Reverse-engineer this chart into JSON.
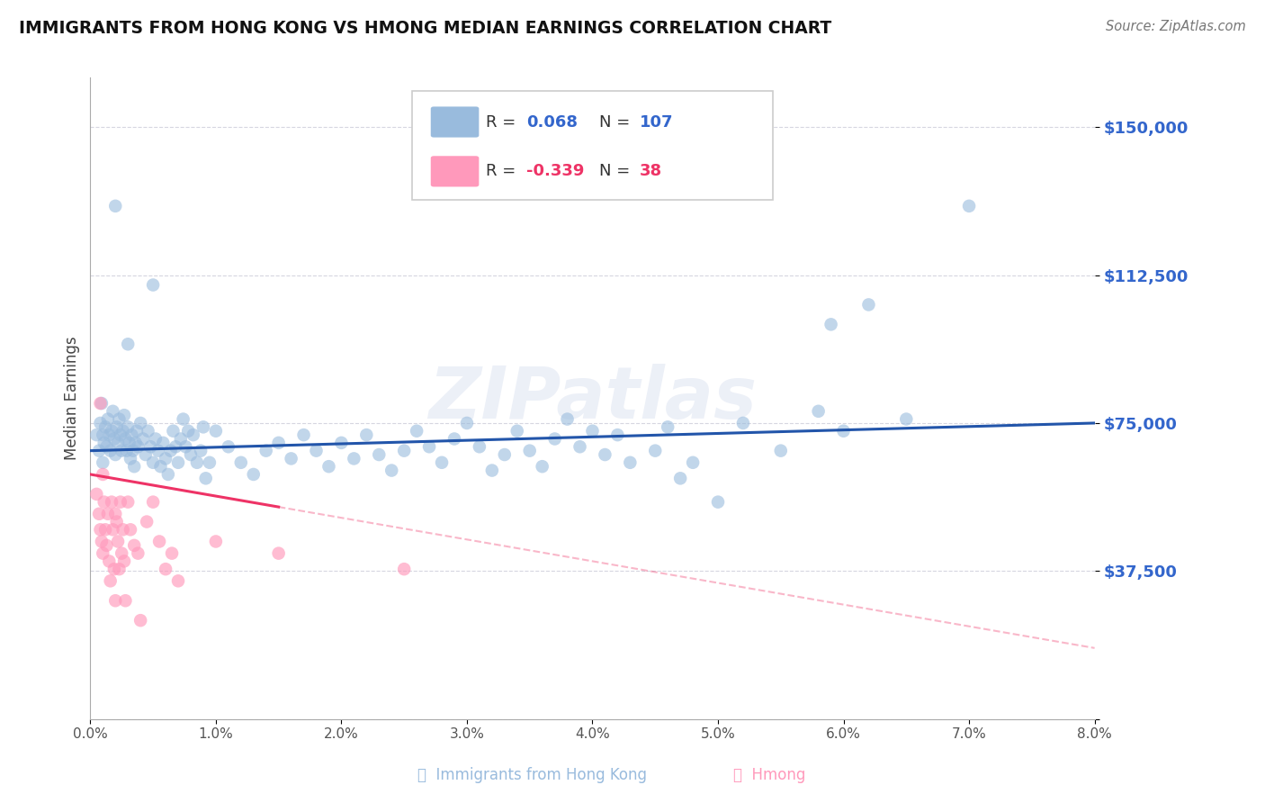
{
  "title": "IMMIGRANTS FROM HONG KONG VS HMONG MEDIAN EARNINGS CORRELATION CHART",
  "source": "Source: ZipAtlas.com",
  "ylabel": "Median Earnings",
  "xmin": 0.0,
  "xmax": 8.0,
  "ymin": 0,
  "ymax": 162500,
  "yticks": [
    0,
    37500,
    75000,
    112500,
    150000
  ],
  "ytick_labels": [
    "",
    "$37,500",
    "$75,000",
    "$112,500",
    "$150,000"
  ],
  "blue_color": "#99BBDD",
  "pink_color": "#FF99BB",
  "trend_blue": "#2255AA",
  "trend_pink": "#EE3366",
  "watermark": "ZIPatlas",
  "blue_intercept": 68000,
  "blue_slope": 875,
  "pink_intercept": 62000,
  "pink_slope": -5500,
  "pink_solid_end": 1.5,
  "blue_points": [
    [
      0.05,
      72000
    ],
    [
      0.07,
      68000
    ],
    [
      0.08,
      75000
    ],
    [
      0.09,
      80000
    ],
    [
      0.1,
      65000
    ],
    [
      0.1,
      72000
    ],
    [
      0.11,
      70000
    ],
    [
      0.12,
      74000
    ],
    [
      0.13,
      69000
    ],
    [
      0.14,
      76000
    ],
    [
      0.15,
      72000
    ],
    [
      0.16,
      68000
    ],
    [
      0.17,
      73000
    ],
    [
      0.18,
      78000
    ],
    [
      0.19,
      71000
    ],
    [
      0.2,
      67000
    ],
    [
      0.21,
      74000
    ],
    [
      0.22,
      70000
    ],
    [
      0.23,
      76000
    ],
    [
      0.24,
      72000
    ],
    [
      0.25,
      68000
    ],
    [
      0.26,
      73000
    ],
    [
      0.27,
      77000
    ],
    [
      0.28,
      71000
    ],
    [
      0.29,
      68000
    ],
    [
      0.3,
      95000
    ],
    [
      0.3,
      74000
    ],
    [
      0.31,
      70000
    ],
    [
      0.32,
      66000
    ],
    [
      0.33,
      72000
    ],
    [
      0.34,
      68000
    ],
    [
      0.35,
      64000
    ],
    [
      0.36,
      70000
    ],
    [
      0.37,
      73000
    ],
    [
      0.38,
      69000
    ],
    [
      0.4,
      75000
    ],
    [
      0.42,
      71000
    ],
    [
      0.44,
      67000
    ],
    [
      0.46,
      73000
    ],
    [
      0.48,
      69000
    ],
    [
      0.5,
      65000
    ],
    [
      0.52,
      71000
    ],
    [
      0.54,
      68000
    ],
    [
      0.56,
      64000
    ],
    [
      0.58,
      70000
    ],
    [
      0.6,
      66000
    ],
    [
      0.62,
      62000
    ],
    [
      0.64,
      68000
    ],
    [
      0.66,
      73000
    ],
    [
      0.68,
      69000
    ],
    [
      0.7,
      65000
    ],
    [
      0.72,
      71000
    ],
    [
      0.74,
      76000
    ],
    [
      0.76,
      69000
    ],
    [
      0.78,
      73000
    ],
    [
      0.8,
      67000
    ],
    [
      0.82,
      72000
    ],
    [
      0.85,
      65000
    ],
    [
      0.88,
      68000
    ],
    [
      0.9,
      74000
    ],
    [
      0.92,
      61000
    ],
    [
      0.95,
      65000
    ],
    [
      0.5,
      110000
    ],
    [
      1.0,
      73000
    ],
    [
      1.1,
      69000
    ],
    [
      1.2,
      65000
    ],
    [
      1.3,
      62000
    ],
    [
      1.4,
      68000
    ],
    [
      1.5,
      70000
    ],
    [
      1.6,
      66000
    ],
    [
      1.7,
      72000
    ],
    [
      1.8,
      68000
    ],
    [
      1.9,
      64000
    ],
    [
      2.0,
      70000
    ],
    [
      2.1,
      66000
    ],
    [
      2.2,
      72000
    ],
    [
      2.3,
      67000
    ],
    [
      2.4,
      63000
    ],
    [
      2.5,
      68000
    ],
    [
      2.6,
      73000
    ],
    [
      2.7,
      69000
    ],
    [
      2.8,
      65000
    ],
    [
      2.9,
      71000
    ],
    [
      3.0,
      75000
    ],
    [
      3.1,
      69000
    ],
    [
      3.2,
      63000
    ],
    [
      3.3,
      67000
    ],
    [
      3.4,
      73000
    ],
    [
      3.5,
      68000
    ],
    [
      3.6,
      64000
    ],
    [
      3.7,
      71000
    ],
    [
      3.8,
      76000
    ],
    [
      3.9,
      69000
    ],
    [
      4.0,
      73000
    ],
    [
      4.1,
      67000
    ],
    [
      4.2,
      72000
    ],
    [
      4.3,
      65000
    ],
    [
      4.5,
      68000
    ],
    [
      4.6,
      74000
    ],
    [
      4.7,
      61000
    ],
    [
      4.8,
      65000
    ],
    [
      5.0,
      55000
    ],
    [
      5.2,
      75000
    ],
    [
      5.5,
      68000
    ],
    [
      5.8,
      78000
    ],
    [
      5.9,
      100000
    ],
    [
      6.0,
      73000
    ],
    [
      6.2,
      105000
    ],
    [
      6.5,
      76000
    ],
    [
      7.0,
      130000
    ],
    [
      0.2,
      130000
    ]
  ],
  "pink_points": [
    [
      0.05,
      57000
    ],
    [
      0.07,
      52000
    ],
    [
      0.08,
      48000
    ],
    [
      0.09,
      45000
    ],
    [
      0.1,
      62000
    ],
    [
      0.1,
      42000
    ],
    [
      0.11,
      55000
    ],
    [
      0.12,
      48000
    ],
    [
      0.13,
      44000
    ],
    [
      0.14,
      52000
    ],
    [
      0.15,
      40000
    ],
    [
      0.16,
      35000
    ],
    [
      0.17,
      55000
    ],
    [
      0.18,
      48000
    ],
    [
      0.19,
      38000
    ],
    [
      0.2,
      52000
    ],
    [
      0.2,
      30000
    ],
    [
      0.21,
      50000
    ],
    [
      0.22,
      45000
    ],
    [
      0.23,
      38000
    ],
    [
      0.24,
      55000
    ],
    [
      0.25,
      42000
    ],
    [
      0.26,
      48000
    ],
    [
      0.27,
      40000
    ],
    [
      0.28,
      30000
    ],
    [
      0.3,
      55000
    ],
    [
      0.32,
      48000
    ],
    [
      0.35,
      44000
    ],
    [
      0.38,
      42000
    ],
    [
      0.4,
      25000
    ],
    [
      0.45,
      50000
    ],
    [
      0.5,
      55000
    ],
    [
      0.55,
      45000
    ],
    [
      0.6,
      38000
    ],
    [
      0.65,
      42000
    ],
    [
      0.7,
      35000
    ],
    [
      0.08,
      80000
    ],
    [
      1.0,
      45000
    ],
    [
      1.5,
      42000
    ],
    [
      2.5,
      38000
    ]
  ]
}
